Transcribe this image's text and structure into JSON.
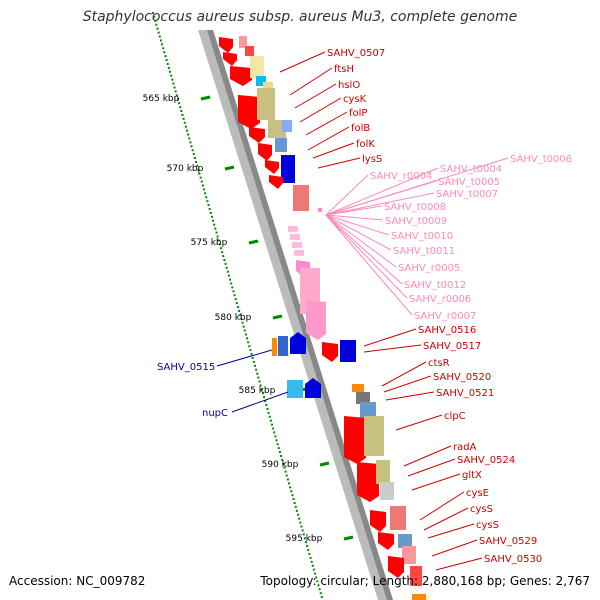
{
  "header": {
    "title": "Staphylococcus aureus subsp. aureus Mu3, complete genome"
  },
  "footer": {
    "accession": "Accession: NC_009782",
    "topology": "Topology: circular; Length: 2,880,168 bp; Genes: 2,767"
  },
  "scale": {
    "unit_label": "kbp",
    "ticks": [
      {
        "kbp": 565,
        "label": "565 kbp"
      },
      {
        "kbp": 570,
        "label": "570 kbp"
      },
      {
        "kbp": 575,
        "label": "575 kbp"
      },
      {
        "kbp": 580,
        "label": "580 kbp"
      },
      {
        "kbp": 585,
        "label": "585 kbp"
      },
      {
        "kbp": 590,
        "label": "590 kbp"
      },
      {
        "kbp": 595,
        "label": "595 kbp"
      }
    ]
  },
  "colors": {
    "cds_red": "#ff0000",
    "cds_blue": "#0000cc",
    "rna_pink": "#ff99cc",
    "outer_label_red": "#cc0000",
    "outer_label_pink": "#ff88bb",
    "inner_label_blue": "#000099",
    "tick_green": "#008800",
    "backbone_gray": "#999999"
  },
  "gene_labels_outer": [
    {
      "name": "SAHV_0507",
      "color": "red"
    },
    {
      "name": "ftsH",
      "color": "red"
    },
    {
      "name": "hslO",
      "color": "red"
    },
    {
      "name": "cysK",
      "color": "red"
    },
    {
      "name": "folP",
      "color": "red"
    },
    {
      "name": "folB",
      "color": "red"
    },
    {
      "name": "folK",
      "color": "red"
    },
    {
      "name": "lysS",
      "color": "red"
    },
    {
      "name": "SAHV_r0004",
      "color": "pink"
    },
    {
      "name": "SAHV_t0004",
      "color": "pink"
    },
    {
      "name": "SAHV_t0006",
      "color": "pink"
    },
    {
      "name": "SAHV_t0005",
      "color": "pink"
    },
    {
      "name": "SAHV_t0007",
      "color": "pink"
    },
    {
      "name": "SAHV_t0008",
      "color": "pink"
    },
    {
      "name": "SAHV_t0009",
      "color": "pink"
    },
    {
      "name": "SAHV_t0010",
      "color": "pink"
    },
    {
      "name": "SAHV_t0011",
      "color": "pink"
    },
    {
      "name": "SAHV_r0005",
      "color": "pink"
    },
    {
      "name": "SAHV_t0012",
      "color": "pink"
    },
    {
      "name": "SAHV_r0006",
      "color": "pink"
    },
    {
      "name": "SAHV_r0007",
      "color": "pink"
    },
    {
      "name": "SAHV_0516",
      "color": "red"
    },
    {
      "name": "SAHV_0517",
      "color": "red"
    },
    {
      "name": "ctsR",
      "color": "red"
    },
    {
      "name": "SAHV_0520",
      "color": "red"
    },
    {
      "name": "SAHV_0521",
      "color": "red"
    },
    {
      "name": "clpC",
      "color": "red"
    },
    {
      "name": "radA",
      "color": "red"
    },
    {
      "name": "SAHV_0524",
      "color": "red"
    },
    {
      "name": "gltX",
      "color": "red"
    },
    {
      "name": "cysE",
      "color": "red"
    },
    {
      "name": "cysS",
      "color": "red"
    },
    {
      "name": "cysS",
      "color": "red"
    },
    {
      "name": "SAHV_0529",
      "color": "red"
    },
    {
      "name": "SAHV_0530",
      "color": "red"
    }
  ],
  "gene_labels_inner": [
    {
      "name": "SAHV_0515",
      "color": "blue"
    },
    {
      "name": "nupC",
      "color": "blue"
    }
  ]
}
